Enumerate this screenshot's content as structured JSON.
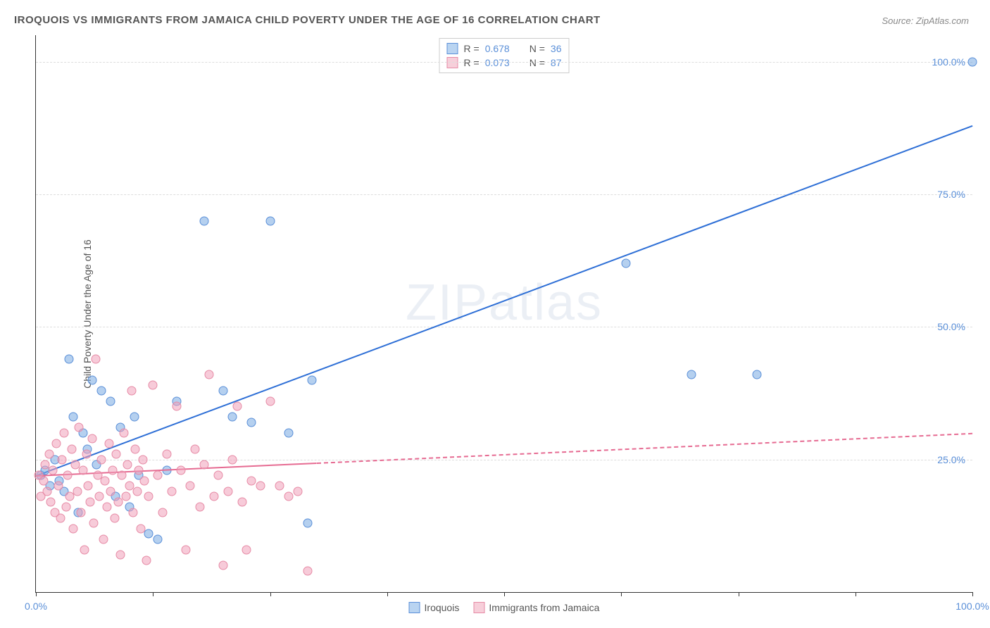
{
  "title": "IROQUOIS VS IMMIGRANTS FROM JAMAICA CHILD POVERTY UNDER THE AGE OF 16 CORRELATION CHART",
  "source": "Source: ZipAtlas.com",
  "ylabel": "Child Poverty Under the Age of 16",
  "watermark": "ZIPatlas",
  "xlim": [
    0,
    100
  ],
  "ylim": [
    0,
    105
  ],
  "xticks": [
    0,
    12.5,
    25,
    37.5,
    50,
    62.5,
    75,
    87.5,
    100
  ],
  "xtick_labels": {
    "0": "0.0%",
    "100": "100.0%"
  },
  "yticks": [
    25,
    50,
    75,
    100
  ],
  "ytick_labels": {
    "25": "25.0%",
    "50": "50.0%",
    "75": "75.0%",
    "100": "100.0%"
  },
  "legend_top": [
    {
      "swatch_fill": "#b9d4f1",
      "swatch_border": "#5a8fd8",
      "r_label": "R =",
      "r": "0.678",
      "n_label": "N =",
      "n": "36"
    },
    {
      "swatch_fill": "#f7cfda",
      "swatch_border": "#e68aa5",
      "r_label": "R =",
      "r": "0.073",
      "n_label": "N =",
      "n": "87"
    }
  ],
  "legend_bottom": [
    {
      "swatch_fill": "#b9d4f1",
      "swatch_border": "#5a8fd8",
      "label": "Iroquois"
    },
    {
      "swatch_fill": "#f7cfda",
      "swatch_border": "#e68aa5",
      "label": "Immigrants from Jamaica"
    }
  ],
  "series": [
    {
      "name": "Iroquois",
      "color_fill": "rgba(120,170,225,0.55)",
      "color_stroke": "#5a8fd8",
      "marker_size": 13,
      "trend": {
        "x0": 0,
        "y0": 22,
        "x1": 100,
        "y1": 88,
        "solid_until_x": 100,
        "color": "#2e6fd6"
      },
      "points": [
        [
          0.5,
          22
        ],
        [
          1,
          23
        ],
        [
          1.5,
          20
        ],
        [
          2,
          25
        ],
        [
          2.5,
          21
        ],
        [
          3,
          19
        ],
        [
          3.5,
          44
        ],
        [
          4,
          33
        ],
        [
          4.5,
          15
        ],
        [
          5,
          30
        ],
        [
          5.5,
          27
        ],
        [
          6,
          40
        ],
        [
          6.5,
          24
        ],
        [
          7,
          38
        ],
        [
          8,
          36
        ],
        [
          8.5,
          18
        ],
        [
          9,
          31
        ],
        [
          10,
          16
        ],
        [
          10.5,
          33
        ],
        [
          11,
          22
        ],
        [
          12,
          11
        ],
        [
          13,
          10
        ],
        [
          14,
          23
        ],
        [
          15,
          36
        ],
        [
          18,
          70
        ],
        [
          20,
          38
        ],
        [
          21,
          33
        ],
        [
          23,
          32
        ],
        [
          25,
          70
        ],
        [
          27,
          30
        ],
        [
          29,
          13
        ],
        [
          29.5,
          40
        ],
        [
          63,
          62
        ],
        [
          70,
          41
        ],
        [
          77,
          41
        ],
        [
          100,
          100
        ]
      ]
    },
    {
      "name": "Immigrants from Jamaica",
      "color_fill": "rgba(240,160,185,0.55)",
      "color_stroke": "#e68aa5",
      "marker_size": 13,
      "trend": {
        "x0": 0,
        "y0": 22,
        "x1": 100,
        "y1": 30,
        "solid_until_x": 30,
        "color": "#e66b92"
      },
      "points": [
        [
          0.3,
          22
        ],
        [
          0.5,
          18
        ],
        [
          0.8,
          21
        ],
        [
          1,
          24
        ],
        [
          1.2,
          19
        ],
        [
          1.4,
          26
        ],
        [
          1.6,
          17
        ],
        [
          1.8,
          23
        ],
        [
          2,
          15
        ],
        [
          2.2,
          28
        ],
        [
          2.4,
          20
        ],
        [
          2.6,
          14
        ],
        [
          2.8,
          25
        ],
        [
          3,
          30
        ],
        [
          3.2,
          16
        ],
        [
          3.4,
          22
        ],
        [
          3.6,
          18
        ],
        [
          3.8,
          27
        ],
        [
          4,
          12
        ],
        [
          4.2,
          24
        ],
        [
          4.4,
          19
        ],
        [
          4.6,
          31
        ],
        [
          4.8,
          15
        ],
        [
          5,
          23
        ],
        [
          5.2,
          8
        ],
        [
          5.4,
          26
        ],
        [
          5.6,
          20
        ],
        [
          5.8,
          17
        ],
        [
          6,
          29
        ],
        [
          6.2,
          13
        ],
        [
          6.4,
          44
        ],
        [
          6.6,
          22
        ],
        [
          6.8,
          18
        ],
        [
          7,
          25
        ],
        [
          7.2,
          10
        ],
        [
          7.4,
          21
        ],
        [
          7.6,
          16
        ],
        [
          7.8,
          28
        ],
        [
          8,
          19
        ],
        [
          8.2,
          23
        ],
        [
          8.4,
          14
        ],
        [
          8.6,
          26
        ],
        [
          8.8,
          17
        ],
        [
          9,
          7
        ],
        [
          9.2,
          22
        ],
        [
          9.4,
          30
        ],
        [
          9.6,
          18
        ],
        [
          9.8,
          24
        ],
        [
          10,
          20
        ],
        [
          10.2,
          38
        ],
        [
          10.4,
          15
        ],
        [
          10.6,
          27
        ],
        [
          10.8,
          19
        ],
        [
          11,
          23
        ],
        [
          11.2,
          12
        ],
        [
          11.4,
          25
        ],
        [
          11.6,
          21
        ],
        [
          11.8,
          6
        ],
        [
          12,
          18
        ],
        [
          12.5,
          39
        ],
        [
          13,
          22
        ],
        [
          13.5,
          15
        ],
        [
          14,
          26
        ],
        [
          14.5,
          19
        ],
        [
          15,
          35
        ],
        [
          15.5,
          23
        ],
        [
          16,
          8
        ],
        [
          16.5,
          20
        ],
        [
          17,
          27
        ],
        [
          17.5,
          16
        ],
        [
          18,
          24
        ],
        [
          18.5,
          41
        ],
        [
          19,
          18
        ],
        [
          19.5,
          22
        ],
        [
          20,
          5
        ],
        [
          20.5,
          19
        ],
        [
          21,
          25
        ],
        [
          21.5,
          35
        ],
        [
          22,
          17
        ],
        [
          22.5,
          8
        ],
        [
          23,
          21
        ],
        [
          24,
          20
        ],
        [
          25,
          36
        ],
        [
          26,
          20
        ],
        [
          27,
          18
        ],
        [
          28,
          19
        ],
        [
          29,
          4
        ]
      ]
    }
  ],
  "colors": {
    "title": "#555555",
    "source": "#888888",
    "axis": "#333333",
    "grid": "#dddddd",
    "tick_text": "#5a8fd8",
    "background": "#ffffff"
  }
}
